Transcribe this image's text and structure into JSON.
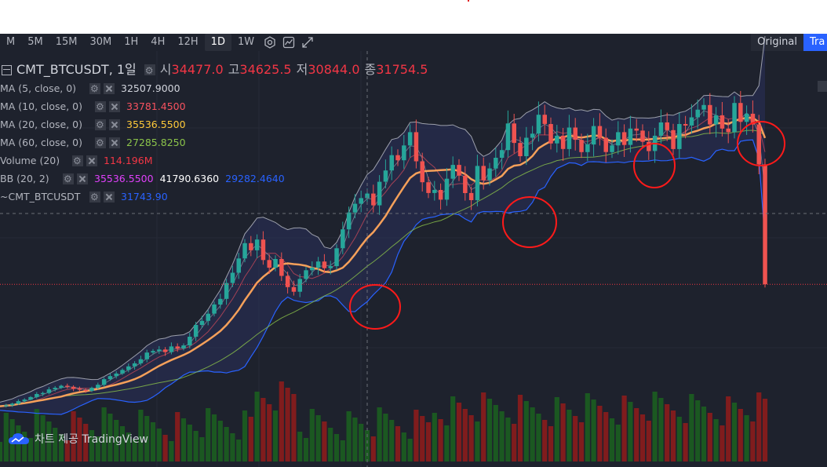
{
  "toolbar": {
    "timeframes": [
      "M",
      "5M",
      "15M",
      "30M",
      "1H",
      "4H",
      "12H",
      "1D",
      "1W"
    ],
    "active": "1D",
    "icons": [
      "settings-icon",
      "compare-icon",
      "fullscreen-icon"
    ],
    "view_original": "Original",
    "view_trading": "Tra"
  },
  "symbol": {
    "name": "CMT_BTCUSDT, 1일",
    "open_label": "시",
    "open": "34477.0",
    "high_label": "고",
    "high": "34625.5",
    "low_label": "저",
    "low": "30844.0",
    "close_label": "종",
    "close": "31754.5"
  },
  "indicators": [
    {
      "label": "MA (5, close, 0)",
      "value": "32507.9000",
      "color": "#d1d4dc"
    },
    {
      "label": "MA (10, close, 0)",
      "value": "33781.4500",
      "color": "#f7525f"
    },
    {
      "label": "MA (20, close, 0)",
      "value": "35536.5500",
      "color": "#ffca3a"
    },
    {
      "label": "MA (60, close, 0)",
      "value": "27285.8250",
      "color": "#8bc34a"
    },
    {
      "label": "Volume (20)",
      "value": "114.196M",
      "color": "#f23645"
    },
    {
      "label": "BB (20, 2)",
      "value": "35536.5500",
      "value2": "41790.6360",
      "value3": "29282.4640",
      "color": "#e040fb",
      "color2": "#ffffff",
      "color3": "#2962ff"
    },
    {
      "label": "~CMT_BTCUSDT",
      "value": "31743.90",
      "color": "#2962ff"
    }
  ],
  "watermark": "차트 제공 TradingView",
  "colors": {
    "up": "#26a69a",
    "down": "#ef5350",
    "bg": "#1e222d",
    "ma20": "#f5a05a",
    "ma60": "#8bc34a",
    "bb": "#d1d4dc",
    "annot": "#ff1a1a"
  },
  "chart_data": {
    "type": "candlestick",
    "close_path": [
      7900,
      8100,
      8400,
      8900,
      9200,
      9700,
      10300,
      10500,
      11200,
      11500,
      11900,
      11700,
      11300,
      11100,
      10900,
      11500,
      12100,
      13200,
      13800,
      14300,
      15000,
      15700,
      16300,
      17100,
      18400,
      18700,
      19000,
      18500,
      19600,
      19200,
      19800,
      21500,
      23800,
      24600,
      26000,
      27800,
      28900,
      32000,
      34000,
      36800,
      39800,
      38400,
      40500,
      36500,
      35000,
      36700,
      33400,
      31200,
      30300,
      32800,
      34500,
      35000,
      36200,
      34900,
      35300,
      38800,
      42500,
      45800,
      47500,
      48600,
      49500,
      47200,
      51800,
      54000,
      57000,
      56000,
      58900,
      61500,
      55800,
      51700,
      49600,
      50200,
      48300,
      52400,
      55100,
      53000,
      49600,
      48200,
      54900,
      52100,
      54400,
      56500,
      58000,
      63200,
      59400,
      56800,
      60400,
      61200,
      64900,
      63100,
      59300,
      60800,
      58200,
      62400,
      60000,
      57600,
      59100,
      62700,
      60400,
      57600,
      58900,
      61500,
      59000,
      62200,
      61800,
      59600,
      57800,
      60800,
      63400,
      61900,
      58200,
      63100,
      62800,
      64400,
      65900,
      66800,
      63000,
      64800,
      62200,
      61500,
      67200,
      63500,
      65100,
      63000,
      55200,
      31754.5
    ]
  }
}
